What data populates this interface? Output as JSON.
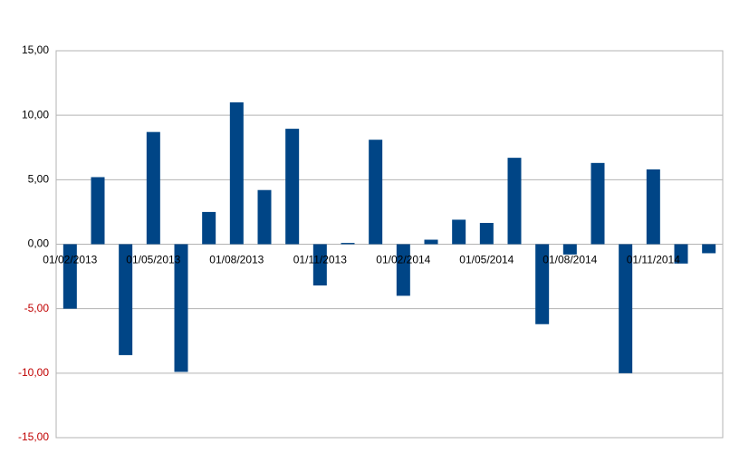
{
  "chart_data": {
    "type": "bar",
    "categories": [
      "01/02/2013",
      null,
      null,
      "01/05/2013",
      null,
      null,
      "01/08/2013",
      null,
      null,
      "01/11/2013",
      null,
      null,
      "01/02/2014",
      null,
      null,
      "01/05/2014",
      null,
      null,
      "01/08/2014",
      null,
      null,
      "01/11/2014",
      null,
      null
    ],
    "values": [
      -5.0,
      5.2,
      -8.6,
      8.7,
      -9.9,
      2.5,
      11.0,
      4.2,
      8.95,
      -3.2,
      0.1,
      8.1,
      -4.0,
      0.35,
      1.9,
      1.65,
      6.7,
      -6.2,
      -0.8,
      6.3,
      -10.0,
      5.8,
      -1.5,
      -0.7
    ],
    "color": "#004586",
    "ylim": [
      -15,
      15
    ],
    "yticks": [
      {
        "value": -15,
        "label": "-15,00"
      },
      {
        "value": -10,
        "label": "-10,00"
      },
      {
        "value": -5,
        "label": "-5,00"
      },
      {
        "value": 0,
        "label": "0,00"
      },
      {
        "value": 5,
        "label": "5,00"
      },
      {
        "value": 10,
        "label": "10,00"
      },
      {
        "value": 15,
        "label": "15,00"
      }
    ],
    "negative_tick_color": "#c00000",
    "grid": true
  }
}
